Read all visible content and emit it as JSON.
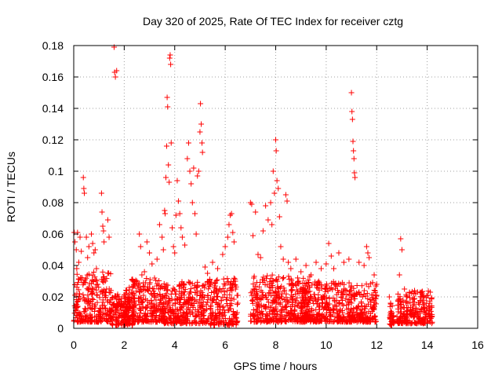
{
  "chart_data": {
    "type": "scatter",
    "title": "Day 320 of 2025, Rate Of TEC Index for receiver cztg",
    "xlabel": "GPS time / hours",
    "ylabel": "ROTI / TECUs",
    "xlim": [
      0,
      16
    ],
    "ylim": [
      0,
      0.18
    ],
    "xticks": [
      0,
      2,
      4,
      6,
      8,
      10,
      12,
      14,
      16
    ],
    "yticks": [
      0,
      0.02,
      0.04,
      0.06,
      0.08,
      0.1,
      0.12,
      0.14,
      0.16,
      0.18
    ],
    "xtick_labels": [
      "0",
      "2",
      "4",
      "6",
      "8",
      "10",
      "12",
      "14",
      "16"
    ],
    "ytick_labels": [
      "0",
      "0.02",
      "0.04",
      "0.06",
      "0.08",
      "0.1",
      "0.12",
      "0.14",
      "0.16",
      "0.18"
    ],
    "grid": true,
    "marker": "+",
    "marker_color": "#ff0000",
    "series": [
      {
        "name": "ROTI",
        "points": [
          [
            0.02,
            0.061
          ],
          [
            0.05,
            0.055
          ],
          [
            0.1,
            0.05
          ],
          [
            0.12,
            0.038
          ],
          [
            0.15,
            0.061
          ],
          [
            0.2,
            0.042
          ],
          [
            0.25,
            0.058
          ],
          [
            0.3,
            0.049
          ],
          [
            0.38,
            0.096
          ],
          [
            0.4,
            0.089
          ],
          [
            0.42,
            0.086
          ],
          [
            0.5,
            0.058
          ],
          [
            0.55,
            0.045
          ],
          [
            0.6,
            0.052
          ],
          [
            0.7,
            0.06
          ],
          [
            0.75,
            0.054
          ],
          [
            0.8,
            0.048
          ],
          [
            0.85,
            0.05
          ],
          [
            0.9,
            0.038
          ],
          [
            0.95,
            0.028
          ],
          [
            1.1,
            0.086
          ],
          [
            1.12,
            0.074
          ],
          [
            1.15,
            0.065
          ],
          [
            1.18,
            0.062
          ],
          [
            1.2,
            0.055
          ],
          [
            1.25,
            0.03
          ],
          [
            1.3,
            0.025
          ],
          [
            1.35,
            0.069
          ],
          [
            1.4,
            0.058
          ],
          [
            1.6,
            0.179
          ],
          [
            1.62,
            0.163
          ],
          [
            1.65,
            0.16
          ],
          [
            1.7,
            0.164
          ],
          [
            1.8,
            0.018
          ],
          [
            1.9,
            0.016
          ],
          [
            2.0,
            0.02
          ],
          [
            2.1,
            0.024
          ],
          [
            2.2,
            0.026
          ],
          [
            2.3,
            0.031
          ],
          [
            2.4,
            0.028
          ],
          [
            2.5,
            0.03
          ],
          [
            2.6,
            0.06
          ],
          [
            2.65,
            0.052
          ],
          [
            2.7,
            0.034
          ],
          [
            2.8,
            0.036
          ],
          [
            2.9,
            0.055
          ],
          [
            3.0,
            0.048
          ],
          [
            3.1,
            0.041
          ],
          [
            3.2,
            0.032
          ],
          [
            3.3,
            0.044
          ],
          [
            3.4,
            0.066
          ],
          [
            3.5,
            0.058
          ],
          [
            3.55,
            0.05
          ],
          [
            3.6,
            0.075
          ],
          [
            3.62,
            0.073
          ],
          [
            3.65,
            0.096
          ],
          [
            3.68,
            0.116
          ],
          [
            3.7,
            0.147
          ],
          [
            3.72,
            0.141
          ],
          [
            3.75,
            0.104
          ],
          [
            3.78,
            0.093
          ],
          [
            3.8,
            0.172
          ],
          [
            3.82,
            0.174
          ],
          [
            3.84,
            0.168
          ],
          [
            3.86,
            0.118
          ],
          [
            3.9,
            0.064
          ],
          [
            3.95,
            0.052
          ],
          [
            4.0,
            0.048
          ],
          [
            4.05,
            0.072
          ],
          [
            4.1,
            0.094
          ],
          [
            4.15,
            0.081
          ],
          [
            4.2,
            0.073
          ],
          [
            4.25,
            0.064
          ],
          [
            4.3,
            0.058
          ],
          [
            4.4,
            0.053
          ],
          [
            4.5,
            0.108
          ],
          [
            4.55,
            0.118
          ],
          [
            4.6,
            0.1
          ],
          [
            4.65,
            0.092
          ],
          [
            4.7,
            0.08
          ],
          [
            4.75,
            0.102
          ],
          [
            4.8,
            0.073
          ],
          [
            4.85,
            0.06
          ],
          [
            4.9,
            0.097
          ],
          [
            4.95,
            0.1
          ],
          [
            5.0,
            0.125
          ],
          [
            5.02,
            0.143
          ],
          [
            5.05,
            0.13
          ],
          [
            5.08,
            0.118
          ],
          [
            5.1,
            0.112
          ],
          [
            5.2,
            0.039
          ],
          [
            5.3,
            0.035
          ],
          [
            5.5,
            0.042
          ],
          [
            5.7,
            0.038
          ],
          [
            5.9,
            0.047
          ],
          [
            6.0,
            0.052
          ],
          [
            6.1,
            0.058
          ],
          [
            6.15,
            0.066
          ],
          [
            6.2,
            0.072
          ],
          [
            6.25,
            0.073
          ],
          [
            6.3,
            0.061
          ],
          [
            6.35,
            0.055
          ],
          [
            6.4,
            0.03
          ],
          [
            6.5,
            0.021
          ],
          [
            7.0,
            0.08
          ],
          [
            7.05,
            0.079
          ],
          [
            7.1,
            0.059
          ],
          [
            7.2,
            0.074
          ],
          [
            7.3,
            0.047
          ],
          [
            7.4,
            0.045
          ],
          [
            7.5,
            0.062
          ],
          [
            7.6,
            0.078
          ],
          [
            7.7,
            0.069
          ],
          [
            7.8,
            0.08
          ],
          [
            7.85,
            0.066
          ],
          [
            7.9,
            0.1
          ],
          [
            7.95,
            0.086
          ],
          [
            8.0,
            0.12
          ],
          [
            8.02,
            0.113
          ],
          [
            8.05,
            0.094
          ],
          [
            8.1,
            0.089
          ],
          [
            8.15,
            0.071
          ],
          [
            8.2,
            0.052
          ],
          [
            8.3,
            0.044
          ],
          [
            8.4,
            0.085
          ],
          [
            8.45,
            0.081
          ],
          [
            8.5,
            0.042
          ],
          [
            8.6,
            0.038
          ],
          [
            8.8,
            0.044
          ],
          [
            9.0,
            0.036
          ],
          [
            9.2,
            0.04
          ],
          [
            9.4,
            0.034
          ],
          [
            9.6,
            0.042
          ],
          [
            9.8,
            0.038
          ],
          [
            10.0,
            0.041
          ],
          [
            10.1,
            0.054
          ],
          [
            10.2,
            0.046
          ],
          [
            10.3,
            0.038
          ],
          [
            10.5,
            0.048
          ],
          [
            10.7,
            0.042
          ],
          [
            10.9,
            0.044
          ],
          [
            11.0,
            0.15
          ],
          [
            11.02,
            0.138
          ],
          [
            11.04,
            0.133
          ],
          [
            11.06,
            0.119
          ],
          [
            11.08,
            0.113
          ],
          [
            11.1,
            0.108
          ],
          [
            11.12,
            0.099
          ],
          [
            11.14,
            0.096
          ],
          [
            11.3,
            0.042
          ],
          [
            11.5,
            0.04
          ],
          [
            11.6,
            0.052
          ],
          [
            11.65,
            0.048
          ],
          [
            11.7,
            0.045
          ],
          [
            11.9,
            0.034
          ],
          [
            12.0,
            0.028
          ],
          [
            12.5,
            0.02
          ],
          [
            12.55,
            0.016
          ],
          [
            12.6,
            0.01
          ],
          [
            12.9,
            0.034
          ],
          [
            12.95,
            0.057
          ],
          [
            13.0,
            0.05
          ],
          [
            13.1,
            0.025
          ],
          [
            13.2,
            0.02
          ],
          [
            13.5,
            0.024
          ],
          [
            13.8,
            0.022
          ],
          [
            14.1,
            0.016
          ]
        ],
        "clusters": [
          {
            "x": [
              0.0,
              1.5
            ],
            "y": [
              0.004,
              0.036
            ]
          },
          {
            "x": [
              1.5,
              2.4
            ],
            "y": [
              0.002,
              0.022
            ]
          },
          {
            "x": [
              2.0,
              3.6
            ],
            "y": [
              0.004,
              0.032
            ]
          },
          {
            "x": [
              3.5,
              5.3
            ],
            "y": [
              0.003,
              0.03
            ]
          },
          {
            "x": [
              5.3,
              6.5
            ],
            "y": [
              0.002,
              0.032
            ]
          },
          {
            "x": [
              7.0,
              9.4
            ],
            "y": [
              0.004,
              0.034
            ]
          },
          {
            "x": [
              9.0,
              12.0
            ],
            "y": [
              0.004,
              0.03
            ]
          },
          {
            "x": [
              12.5,
              12.7
            ],
            "y": [
              0.002,
              0.016
            ]
          },
          {
            "x": [
              12.8,
              14.2
            ],
            "y": [
              0.003,
              0.024
            ]
          }
        ]
      }
    ]
  }
}
